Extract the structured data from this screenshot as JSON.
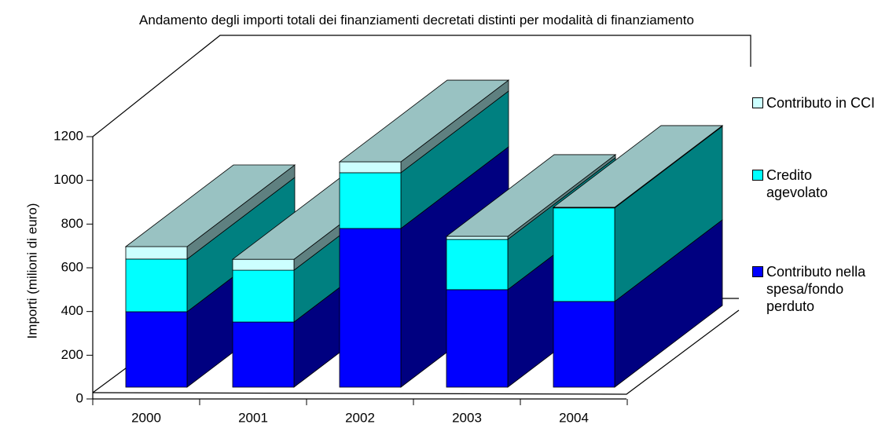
{
  "chart_data": {
    "type": "bar3d_stacked",
    "title": "Andamento degli importi totali dei finanziamenti decretati distinti per modalità di finanziamento",
    "y_label": "Importi (milioni di euro)",
    "categories": [
      "2000",
      "2001",
      "2002",
      "2003",
      "2004"
    ],
    "series": [
      {
        "name": "Contributo nella spesa/fondo perduto",
        "color": "#0000ff",
        "side": "#000080",
        "top": "#3333cc",
        "values": [
          345,
          298,
          726,
          446,
          392
        ]
      },
      {
        "name": "Credito agevolato",
        "color": "#00ffff",
        "side": "#008080",
        "top": "#66cccc",
        "values": [
          241,
          237,
          255,
          230,
          428
        ]
      },
      {
        "name": "Contributo in CCI",
        "color": "#ccffff",
        "side": "#5f8080",
        "top": "#99c2c2",
        "values": [
          57,
          50,
          50,
          14,
          3
        ]
      }
    ],
    "ylim": [
      0,
      1200
    ],
    "yticks": [
      0,
      200,
      400,
      600,
      800,
      1000,
      1200
    ]
  }
}
